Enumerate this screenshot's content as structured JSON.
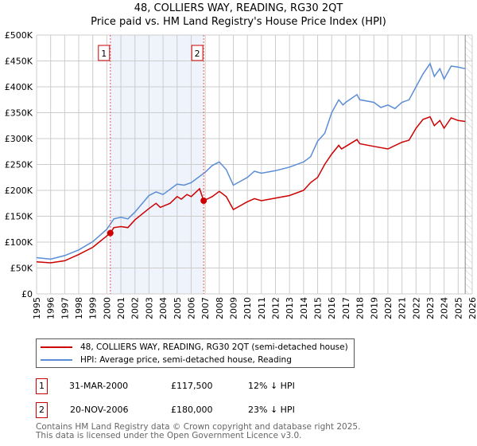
{
  "title_line1": "48, COLLIERS WAY, READING, RG30 2QT",
  "title_line2": "Price paid vs. HM Land Registry's House Price Index (HPI)",
  "colors": {
    "property": "#cc0000",
    "hpi": "#5b8dd6",
    "shade": "#eef3fc",
    "marker_box": "#cc0000"
  },
  "chart_data": {
    "type": "line",
    "xlim": [
      1995,
      2026
    ],
    "ylim": [
      0,
      500000
    ],
    "yticks": [
      0,
      50000,
      100000,
      150000,
      200000,
      250000,
      300000,
      350000,
      400000,
      450000,
      500000
    ],
    "ytick_labels": [
      "£0",
      "£50K",
      "£100K",
      "£150K",
      "£200K",
      "£250K",
      "£300K",
      "£350K",
      "£400K",
      "£450K",
      "£500K"
    ],
    "xticks": [
      1995,
      1996,
      1997,
      1998,
      1999,
      2000,
      2001,
      2002,
      2003,
      2004,
      2005,
      2006,
      2007,
      2008,
      2009,
      2010,
      2011,
      2012,
      2013,
      2014,
      2015,
      2016,
      2017,
      2018,
      2019,
      2020,
      2021,
      2022,
      2023,
      2024,
      2025,
      2026
    ],
    "grid": true,
    "shaded_range": [
      2000.25,
      2006.89
    ],
    "future_hatch_from": 2025.5,
    "series": [
      {
        "name": "48, COLLIERS WAY, READING, RG30 2QT (semi-detached house)",
        "color": "#cc0000",
        "x": [
          1995,
          1996,
          1997,
          1998,
          1999,
          2000,
          2000.25,
          2000.5,
          2001,
          2001.5,
          2002,
          2003,
          2003.5,
          2003.8,
          2004.5,
          2005,
          2005.3,
          2005.7,
          2006,
          2006.6,
          2006.89,
          2007.5,
          2008,
          2008.5,
          2009,
          2010,
          2010.5,
          2011,
          2012,
          2013,
          2014,
          2014.5,
          2015,
          2015.5,
          2016,
          2016.5,
          2016.7,
          2017,
          2017.8,
          2018,
          2019,
          2020,
          2021,
          2021.5,
          2022,
          2022.5,
          2023,
          2023.3,
          2023.7,
          2024,
          2024.5,
          2025,
          2025.5
        ],
        "y": [
          62000,
          60000,
          64000,
          76000,
          90000,
          112000,
          117500,
          128000,
          130000,
          128000,
          143000,
          165000,
          175000,
          167000,
          175000,
          188000,
          183000,
          192000,
          188000,
          203000,
          180000,
          188000,
          198000,
          188000,
          163000,
          178000,
          184000,
          180000,
          185000,
          190000,
          200000,
          215000,
          225000,
          250000,
          270000,
          287000,
          280000,
          285000,
          298000,
          290000,
          285000,
          280000,
          293000,
          297000,
          320000,
          337000,
          342000,
          325000,
          335000,
          320000,
          340000,
          335000,
          333000
        ]
      },
      {
        "name": "HPI: Average price, semi-detached house, Reading",
        "color": "#5b8dd6",
        "x": [
          1995,
          1996,
          1997,
          1998,
          1999,
          2000,
          2000.5,
          2001,
          2001.5,
          2002,
          2003,
          2003.5,
          2004,
          2005,
          2005.5,
          2006,
          2007,
          2007.5,
          2008,
          2008.5,
          2009,
          2010,
          2010.5,
          2011,
          2012,
          2013,
          2014,
          2014.5,
          2015,
          2015.5,
          2016,
          2016.5,
          2016.8,
          2017,
          2017.8,
          2018,
          2019,
          2019.5,
          2020,
          2020.5,
          2021,
          2021.5,
          2022,
          2022.5,
          2023,
          2023.3,
          2023.7,
          2024,
          2024.5,
          2025,
          2025.5
        ],
        "y": [
          70000,
          67000,
          74000,
          85000,
          101000,
          125000,
          145000,
          148000,
          145000,
          158000,
          190000,
          197000,
          192000,
          212000,
          210000,
          215000,
          235000,
          248000,
          255000,
          240000,
          210000,
          225000,
          237000,
          233000,
          238000,
          245000,
          255000,
          265000,
          295000,
          310000,
          350000,
          375000,
          365000,
          370000,
          385000,
          375000,
          370000,
          360000,
          365000,
          358000,
          370000,
          375000,
          400000,
          425000,
          445000,
          420000,
          435000,
          415000,
          440000,
          438000,
          435000
        ]
      }
    ],
    "sales": [
      {
        "id": "1",
        "x": 2000.25,
        "y": 117500
      },
      {
        "id": "2",
        "x": 2006.89,
        "y": 180000
      }
    ]
  },
  "legend": {
    "property": "48, COLLIERS WAY, READING, RG30 2QT (semi-detached house)",
    "hpi": "HPI: Average price, semi-detached house, Reading"
  },
  "transactions": [
    {
      "id": "1",
      "date": "31-MAR-2000",
      "price": "£117,500",
      "hpi": "12% ↓ HPI"
    },
    {
      "id": "2",
      "date": "20-NOV-2006",
      "price": "£180,000",
      "hpi": "23% ↓ HPI"
    }
  ],
  "footer_line1": "Contains HM Land Registry data © Crown copyright and database right 2025.",
  "footer_line2": "This data is licensed under the Open Government Licence v3.0."
}
